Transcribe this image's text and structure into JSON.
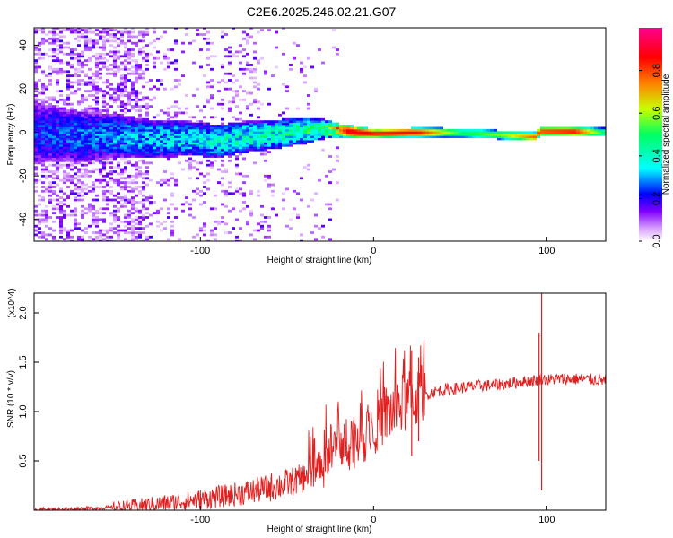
{
  "title": "C2E6.2025.246.02.21.G07",
  "chart_data": [
    {
      "type": "heatmap",
      "name": "spectrogram",
      "xlabel": "Height of straight line (km)",
      "ylabel": "Frequency (Hz)",
      "xlim": [
        -196,
        134
      ],
      "ylim": [
        -50,
        48
      ],
      "xticks": [
        -100,
        0,
        100
      ],
      "yticks": [
        -40,
        -20,
        0,
        20,
        40
      ],
      "colorbar": {
        "label": "Normalized spectral amplitude",
        "range": [
          0,
          1
        ],
        "ticks": [
          "0.0",
          "0.2",
          "0.4",
          "0.6",
          "0.8"
        ],
        "tick_values": [
          0.0,
          0.2,
          0.4,
          0.6,
          0.8
        ],
        "colors": [
          "#ffffff",
          "#d8a0ff",
          "#8000ff",
          "#0000ff",
          "#00ffff",
          "#00ff60",
          "#c8ff00",
          "#ff8000",
          "#ff0000",
          "#ff0090"
        ]
      },
      "centerline": [
        [
          -196,
          0.0
        ],
        [
          -170,
          -2.0
        ],
        [
          -150,
          -1.5
        ],
        [
          -130,
          -3.0
        ],
        [
          -110,
          -2.5
        ],
        [
          -90,
          -4.0
        ],
        [
          -75,
          -2.0
        ],
        [
          -60,
          -1.0
        ],
        [
          -45,
          0.5
        ],
        [
          -30,
          1.5
        ],
        [
          -20,
          1.0
        ],
        [
          -10,
          0.0
        ],
        [
          0,
          -0.5
        ],
        [
          20,
          0.0
        ],
        [
          40,
          0.0
        ],
        [
          60,
          -0.5
        ],
        [
          80,
          -1.5
        ],
        [
          92,
          -2.0
        ],
        [
          95,
          0.5
        ],
        [
          110,
          0.5
        ],
        [
          134,
          0.0
        ]
      ],
      "band_halfwidth_hz": [
        [
          -196,
          14
        ],
        [
          -150,
          10
        ],
        [
          -110,
          8
        ],
        [
          -70,
          7
        ],
        [
          -40,
          6
        ],
        [
          -20,
          3
        ],
        [
          0,
          2
        ],
        [
          134,
          2
        ]
      ],
      "peak_amplitude": [
        [
          -196,
          0.22
        ],
        [
          -150,
          0.28
        ],
        [
          -100,
          0.35
        ],
        [
          -60,
          0.4
        ],
        [
          -30,
          0.45
        ],
        [
          -15,
          0.9
        ],
        [
          0,
          0.85
        ],
        [
          25,
          0.85
        ],
        [
          50,
          0.5
        ],
        [
          75,
          0.6
        ],
        [
          95,
          0.8
        ],
        [
          115,
          0.85
        ],
        [
          134,
          0.45
        ]
      ]
    },
    {
      "type": "line",
      "name": "snr",
      "xlabel": "Height of straight line (km)",
      "ylabel": "SNR (10 * v/v)",
      "scale_label": "(x10^4)",
      "xlim": [
        -196,
        134
      ],
      "ylim": [
        0.0,
        2.2
      ],
      "xticks": [
        -100,
        0,
        100
      ],
      "yticks": [
        0.5,
        1.0,
        1.5,
        2.0
      ],
      "ytick_labels": [
        "0.5",
        "1.0",
        "1.5",
        "2.0"
      ],
      "color": "#e02020",
      "x": [
        -196,
        -180,
        -160,
        -140,
        -120,
        -100,
        -80,
        -70,
        -60,
        -50,
        -40,
        -35,
        -30,
        -25,
        -20,
        -15,
        -10,
        -5,
        0,
        5,
        10,
        15,
        20,
        25,
        30,
        35,
        40,
        50,
        60,
        70,
        80,
        90,
        95,
        97,
        100,
        105,
        110,
        120,
        130,
        134
      ],
      "y": [
        0.01,
        0.01,
        0.02,
        0.04,
        0.07,
        0.11,
        0.16,
        0.19,
        0.23,
        0.27,
        0.33,
        0.38,
        0.48,
        0.58,
        0.65,
        0.7,
        0.75,
        0.8,
        0.88,
        0.95,
        1.0,
        1.05,
        1.1,
        1.15,
        1.17,
        1.2,
        1.22,
        1.24,
        1.26,
        1.27,
        1.29,
        1.31,
        1.32,
        1.34,
        1.32,
        1.33,
        1.33,
        1.33,
        1.32,
        1.31
      ],
      "spikes": [
        {
          "x": 22.0,
          "min": 0.55,
          "max": 1.62
        },
        {
          "x": 26.0,
          "min": 0.7,
          "max": 1.55
        },
        {
          "x": 97.0,
          "min": 0.2,
          "max": 2.22
        },
        {
          "x": 95.5,
          "min": 0.5,
          "max": 1.8
        }
      ]
    }
  ]
}
